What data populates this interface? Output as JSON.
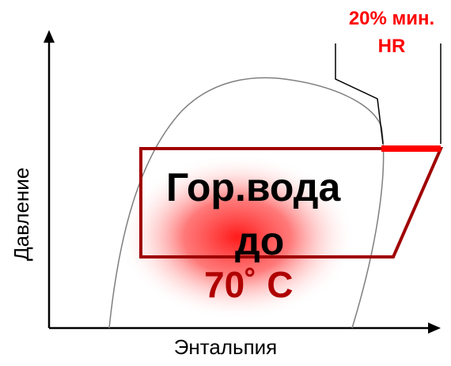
{
  "axes": {
    "x_label": "Энтальпия",
    "y_label": "Давление"
  },
  "annotation": {
    "line1": "20% мин.",
    "line2": "HR"
  },
  "center_text": {
    "line1": "Гор.вода",
    "line2": "до",
    "temperature": "70˚  C"
  },
  "colors": {
    "cycle": "#a00000",
    "highlight": "#ff0000",
    "dome": "#7f7f7f",
    "axis": "#000000",
    "glow": "#ff2020"
  }
}
